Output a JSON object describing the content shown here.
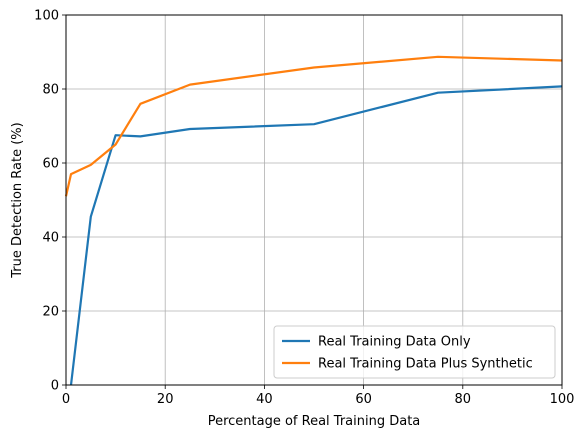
{
  "chart_data": {
    "type": "line",
    "title": "",
    "xlabel": "Percentage of Real Training Data",
    "ylabel": "True Detection Rate (%)",
    "xlim": [
      0,
      100
    ],
    "ylim": [
      0,
      100
    ],
    "xticks": [
      0,
      20,
      40,
      60,
      80,
      100
    ],
    "yticks": [
      0,
      20,
      40,
      60,
      80,
      100
    ],
    "grid": true,
    "legend_position": "lower-right",
    "series": [
      {
        "name": "Real Training Data Only",
        "color": "#1f77b4",
        "x": [
          1,
          5,
          10,
          15,
          25,
          50,
          75,
          100
        ],
        "y": [
          0,
          45.5,
          67.5,
          67.2,
          69.2,
          70.5,
          79,
          80.7
        ]
      },
      {
        "name": "Real Training Data Plus Synthetic",
        "color": "#ff7f0e",
        "x": [
          0,
          1,
          5,
          10,
          15,
          25,
          50,
          75,
          100
        ],
        "y": [
          51,
          57,
          59.5,
          65,
          76,
          81.2,
          85.8,
          88.7,
          87.7
        ]
      }
    ]
  }
}
